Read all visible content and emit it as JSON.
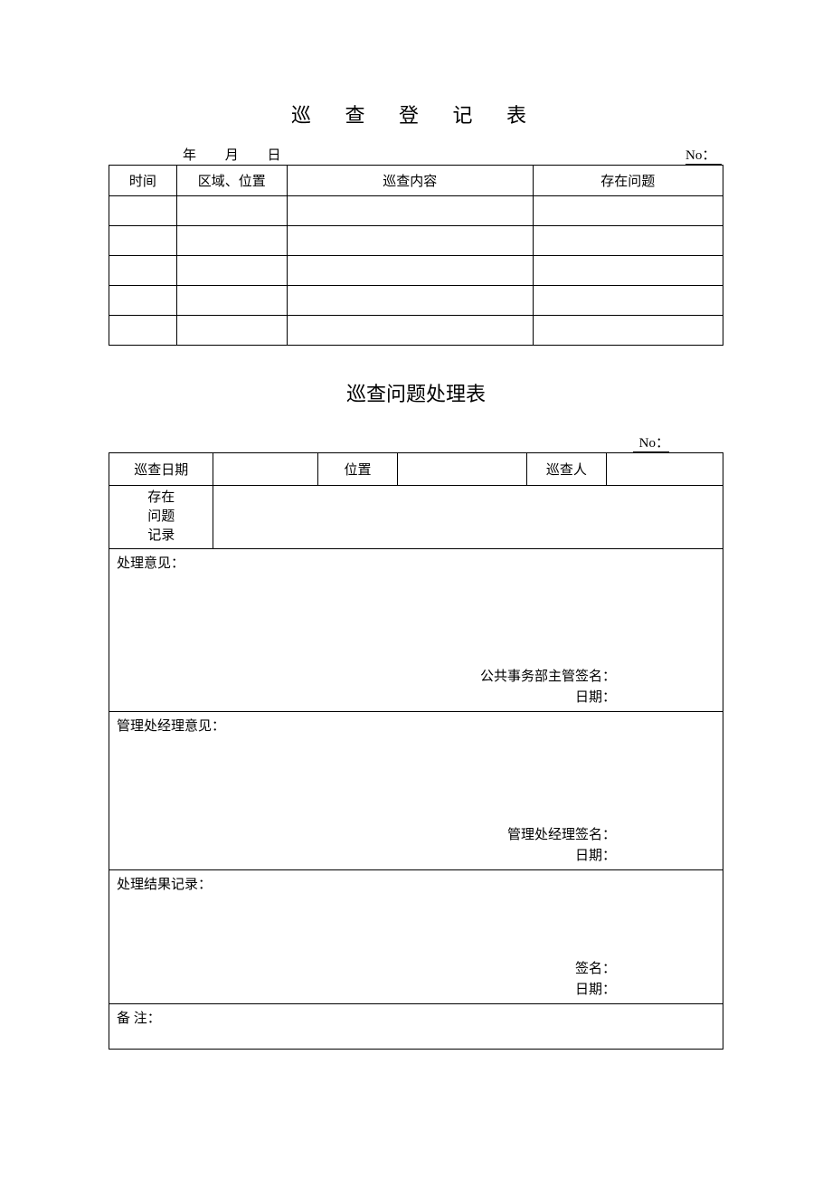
{
  "styling": {
    "page_bg": "#ffffff",
    "text_color": "#000000",
    "border_color": "#000000",
    "font_family": "SimSun",
    "title_fontsize": 22,
    "body_fontsize": 15,
    "table1_col_widths_pct": [
      11,
      18,
      40,
      31
    ],
    "table2_col_widths_pct": [
      17,
      17,
      13,
      21,
      13,
      19
    ]
  },
  "section1": {
    "title": "巡 查 登 记 表",
    "date_label": "年 月 日",
    "no_label": "No：",
    "headers": {
      "time": "时间",
      "area": "区域、位置",
      "content": "巡查内容",
      "issue": "存在问题"
    },
    "rows": [
      {
        "time": "",
        "area": "",
        "content": "",
        "issue": ""
      },
      {
        "time": "",
        "area": "",
        "content": "",
        "issue": ""
      },
      {
        "time": "",
        "area": "",
        "content": "",
        "issue": ""
      },
      {
        "time": "",
        "area": "",
        "content": "",
        "issue": ""
      },
      {
        "time": "",
        "area": "",
        "content": "",
        "issue": ""
      }
    ]
  },
  "section2": {
    "title": "巡查问题处理表",
    "no_label": "No：",
    "row1": {
      "date_label": "巡查日期",
      "date_value": "",
      "location_label": "位置",
      "location_value": "",
      "inspector_label": "巡查人",
      "inspector_value": ""
    },
    "problem_label_l1": "存在",
    "problem_label_l2": "问题",
    "problem_label_l3": "记录",
    "problem_value": "",
    "opinion1": {
      "label": "处理意见：",
      "sig_label": "公共事务部主管签名：",
      "date_label": "日期："
    },
    "opinion2": {
      "label": "管理处经理意见：",
      "sig_label": "管理处经理签名：",
      "date_label": "日期："
    },
    "result": {
      "label": "处理结果记录：",
      "sig_label": "签名：",
      "date_label": "日期："
    },
    "remark_label": "备  注："
  }
}
